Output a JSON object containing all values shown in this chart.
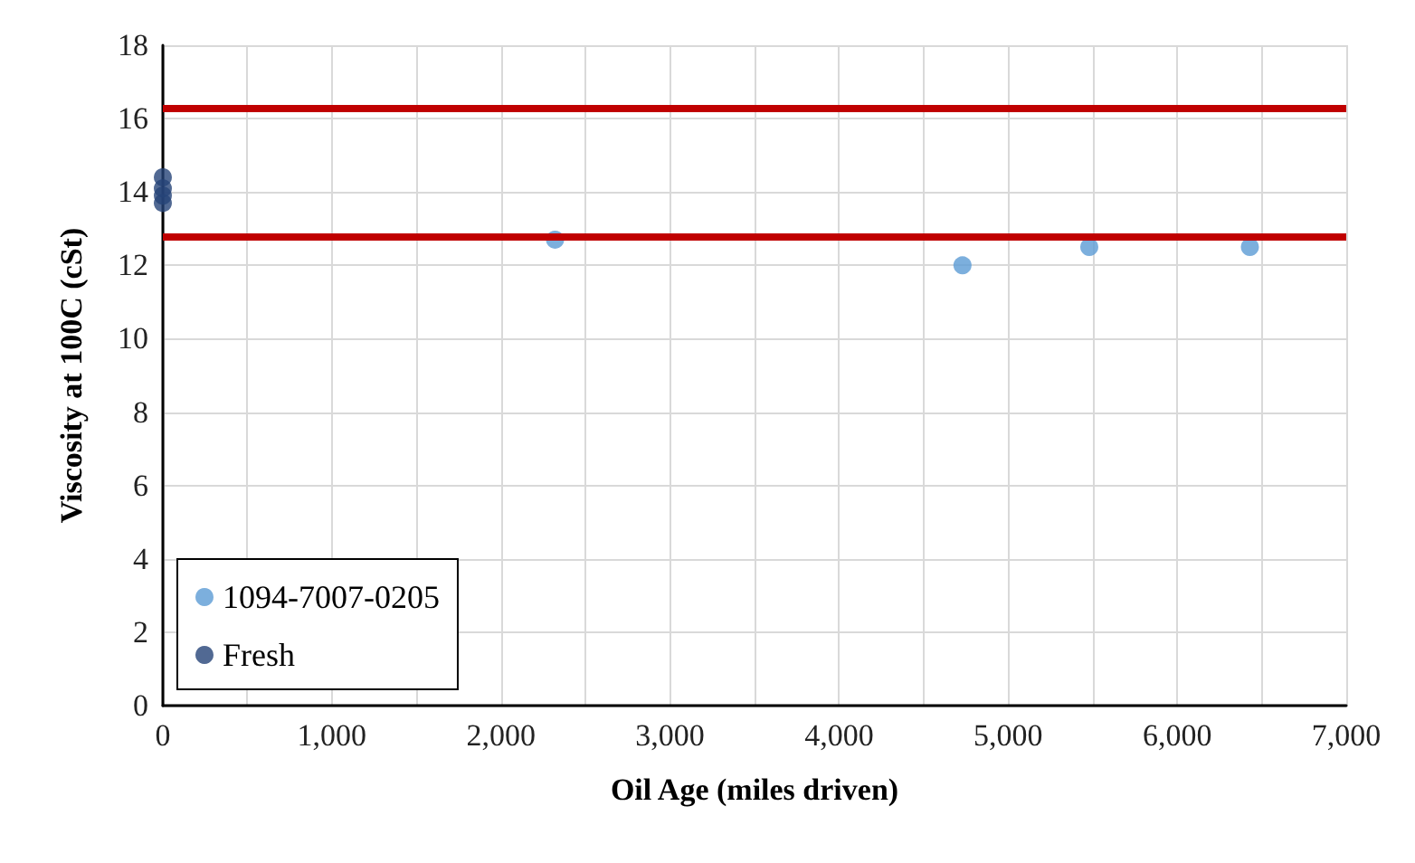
{
  "chart_data": {
    "type": "scatter",
    "xlabel": "Oil Age (miles driven)",
    "ylabel": "Viscosity at 100C (cSt)",
    "xlim": [
      0,
      7000
    ],
    "ylim": [
      0,
      18
    ],
    "xticks": [
      0,
      {
        "value": 500,
        "label": null
      },
      {
        "value": 1000,
        "label": "1,000"
      },
      {
        "value": 1500,
        "label": null
      },
      {
        "value": 2000,
        "label": "2,000"
      },
      {
        "value": 2500,
        "label": null
      },
      {
        "value": 3000,
        "label": "3,000"
      },
      {
        "value": 3500,
        "label": null
      },
      {
        "value": 4000,
        "label": "4,000"
      },
      {
        "value": 4500,
        "label": null
      },
      {
        "value": 5000,
        "label": "5,000"
      },
      {
        "value": 5500,
        "label": null
      },
      {
        "value": 6000,
        "label": "6,000"
      },
      {
        "value": 6500,
        "label": null
      },
      {
        "value": 7000,
        "label": "7,000"
      }
    ],
    "yticks": [
      0,
      2,
      4,
      6,
      8,
      10,
      12,
      14,
      16,
      18
    ],
    "series": [
      {
        "name": "1094-7007-0205",
        "color": "#5b9bd5",
        "x": [
          2320,
          4730,
          5480,
          6430
        ],
        "values": [
          12.7,
          12.0,
          12.5,
          12.5
        ]
      },
      {
        "name": "Fresh",
        "color": "#264478",
        "x": [
          0,
          0,
          0,
          0
        ],
        "values": [
          13.7,
          13.9,
          14.1,
          14.4
        ]
      }
    ],
    "ref_lines": [
      {
        "axis": "y",
        "value": 16.3,
        "color": "#c00000"
      },
      {
        "axis": "y",
        "value": 12.8,
        "color": "#c00000"
      }
    ],
    "grid": true,
    "legend": "bottom left",
    "marker": "circle"
  }
}
